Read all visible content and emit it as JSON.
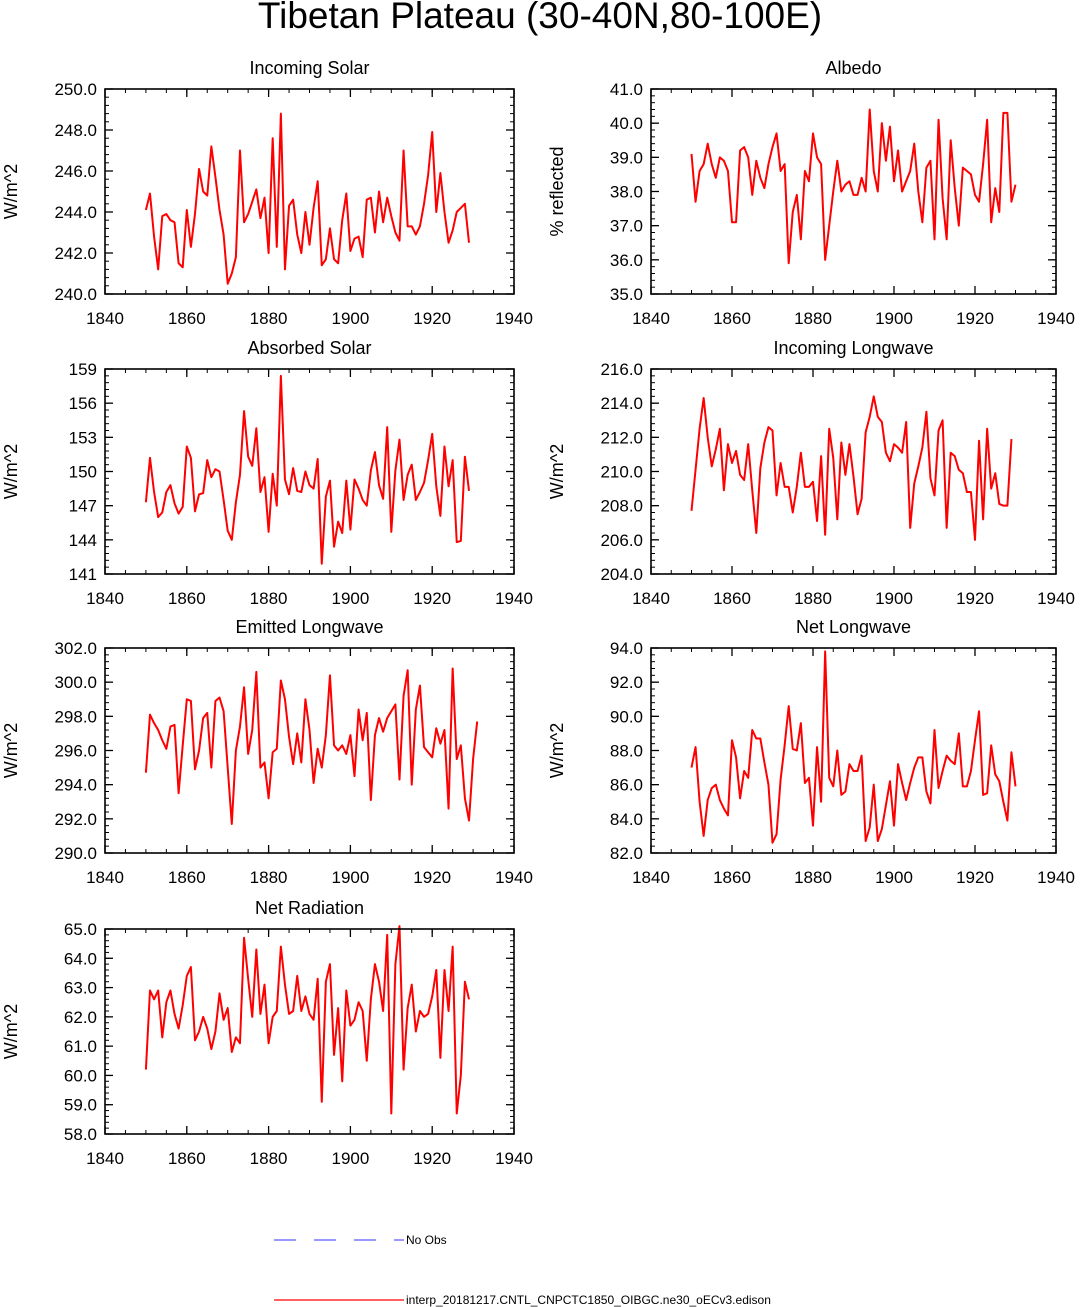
{
  "title": "Tibetan Plateau (30-40N,80-100E)",
  "colors": {
    "series": "#ff0000",
    "obs": "#3333ff",
    "axis": "#000000"
  },
  "legend": {
    "obs_label": "No Obs",
    "model_label": "interp_20181217.CNTL_CNPCTC1850_OIBGC.ne30_oECv3.edison"
  },
  "chart_data": [
    {
      "type": "line",
      "title": "Incoming Solar",
      "xlabel": "",
      "ylabel": "W/m^2",
      "xlim": [
        1840,
        1940
      ],
      "ylim": [
        240,
        250
      ],
      "decimals": 1,
      "xticks": [
        1840,
        1860,
        1880,
        1900,
        1920,
        1940
      ],
      "yticks": [
        240,
        242,
        244,
        246,
        248,
        250
      ],
      "x_start": 1850,
      "values": [
        244.1,
        244.9,
        242.8,
        241.2,
        243.8,
        243.9,
        243.6,
        243.5,
        241.5,
        241.3,
        244.1,
        242.3,
        243.9,
        246.1,
        245.0,
        244.8,
        247.2,
        245.7,
        244.1,
        242.9,
        240.5,
        241.0,
        241.8,
        247.0,
        243.5,
        243.9,
        244.5,
        245.1,
        243.7,
        244.7,
        242.0,
        247.6,
        242.3,
        248.8,
        241.2,
        244.3,
        244.6,
        242.9,
        242.0,
        244.0,
        242.4,
        244.2,
        245.5,
        241.4,
        241.7,
        243.2,
        241.7,
        241.5,
        243.6,
        244.9,
        242.1,
        242.7,
        242.8,
        241.8,
        244.6,
        244.7,
        243.0,
        245.0,
        243.5,
        244.7,
        243.8,
        243.0,
        242.6,
        247.0,
        243.3,
        243.3,
        242.9,
        243.3,
        244.4,
        245.8,
        247.9,
        244.0,
        245.9,
        244.0,
        242.5,
        243.1,
        244.0,
        244.2,
        244.4,
        242.5
      ]
    },
    {
      "type": "line",
      "title": "Albedo",
      "xlabel": "",
      "ylabel": "% reflected",
      "xlim": [
        1840,
        1940
      ],
      "ylim": [
        35,
        41
      ],
      "decimals": 1,
      "xticks": [
        1840,
        1860,
        1880,
        1900,
        1920,
        1940
      ],
      "yticks": [
        35,
        36,
        37,
        38,
        39,
        40,
        41
      ],
      "x_start": 1850,
      "values": [
        39.1,
        37.7,
        38.6,
        38.8,
        39.4,
        38.8,
        38.4,
        39.0,
        38.9,
        38.6,
        37.1,
        37.1,
        39.2,
        39.3,
        39.0,
        37.9,
        38.9,
        38.4,
        38.1,
        38.8,
        39.3,
        39.7,
        38.6,
        38.8,
        35.9,
        37.4,
        37.9,
        36.6,
        38.6,
        38.3,
        39.7,
        39.0,
        38.8,
        36.0,
        37.0,
        38.0,
        38.9,
        38.0,
        38.2,
        38.3,
        37.9,
        37.9,
        38.4,
        38.0,
        40.4,
        38.6,
        38.0,
        40.0,
        38.9,
        39.9,
        38.3,
        39.2,
        38.0,
        38.3,
        38.6,
        39.4,
        38.0,
        37.1,
        38.7,
        38.9,
        36.6,
        40.1,
        37.8,
        36.6,
        39.5,
        38.1,
        37.0,
        38.7,
        38.6,
        38.5,
        37.9,
        37.7,
        38.8,
        40.1,
        37.1,
        38.1,
        37.4,
        40.3,
        40.3,
        37.7,
        38.2
      ]
    },
    {
      "type": "line",
      "title": "Absorbed Solar",
      "xlabel": "",
      "ylabel": "W/m^2",
      "xlim": [
        1840,
        1940
      ],
      "ylim": [
        141,
        159
      ],
      "decimals": 0,
      "xticks": [
        1840,
        1860,
        1880,
        1900,
        1920,
        1940
      ],
      "yticks": [
        141,
        144,
        147,
        150,
        153,
        156,
        159
      ],
      "x_start": 1850,
      "values": [
        147.3,
        151.2,
        148.2,
        146.0,
        146.4,
        148.2,
        148.8,
        147.2,
        146.3,
        146.9,
        152.2,
        151.2,
        146.5,
        148.0,
        148.1,
        151.0,
        149.5,
        150.2,
        150.0,
        147.5,
        144.8,
        144.0,
        147.3,
        149.7,
        155.3,
        151.3,
        150.5,
        153.8,
        148.2,
        149.5,
        144.7,
        149.8,
        147.0,
        158.4,
        149.3,
        148.0,
        150.3,
        148.3,
        148.2,
        150.0,
        148.8,
        148.5,
        151.1,
        141.9,
        147.8,
        149.2,
        143.4,
        145.6,
        144.6,
        149.2,
        144.9,
        149.3,
        148.5,
        147.5,
        147.0,
        150.1,
        151.7,
        148.8,
        147.6,
        153.9,
        144.7,
        150.1,
        152.8,
        147.5,
        149.7,
        150.6,
        147.5,
        148.2,
        149.0,
        151.0,
        153.3,
        148.7,
        146.1,
        152.2,
        148.7,
        151.0,
        143.8,
        143.9,
        151.3,
        148.3
      ]
    },
    {
      "type": "line",
      "title": "Incoming Longwave",
      "xlabel": "",
      "ylabel": "W/m^2",
      "xlim": [
        1840,
        1940
      ],
      "ylim": [
        204,
        216
      ],
      "decimals": 1,
      "xticks": [
        1840,
        1860,
        1880,
        1900,
        1920,
        1940
      ],
      "yticks": [
        204,
        206,
        208,
        210,
        212,
        214,
        216
      ],
      "x_start": 1850,
      "values": [
        207.7,
        210.1,
        212.5,
        214.3,
        212.0,
        210.3,
        211.3,
        212.5,
        208.9,
        211.6,
        210.5,
        211.2,
        209.8,
        209.5,
        211.6,
        208.9,
        206.4,
        210.2,
        211.7,
        212.6,
        212.4,
        208.6,
        210.5,
        209.1,
        209.1,
        207.6,
        209.1,
        211.1,
        209.1,
        209.1,
        209.4,
        207.1,
        210.9,
        206.3,
        212.5,
        210.8,
        207.2,
        211.7,
        209.8,
        211.6,
        209.7,
        207.5,
        208.4,
        212.3,
        213.2,
        214.4,
        213.2,
        212.9,
        211.1,
        210.6,
        211.6,
        211.4,
        211.1,
        212.9,
        206.7,
        209.3,
        210.3,
        211.4,
        213.5,
        209.6,
        208.6,
        212.4,
        213.0,
        206.7,
        211.1,
        210.9,
        210.1,
        209.9,
        208.8,
        208.8,
        206.0,
        211.8,
        207.2,
        212.5,
        209.0,
        209.9,
        208.1,
        208.0,
        208.0,
        211.9
      ]
    },
    {
      "type": "line",
      "title": "Emitted Longwave",
      "xlabel": "",
      "ylabel": "W/m^2",
      "xlim": [
        1840,
        1940
      ],
      "ylim": [
        290,
        302
      ],
      "decimals": 1,
      "xticks": [
        1840,
        1860,
        1880,
        1900,
        1920,
        1940
      ],
      "yticks": [
        290,
        292,
        294,
        296,
        298,
        300,
        302
      ],
      "x_start": 1850,
      "values": [
        294.7,
        298.1,
        297.6,
        297.2,
        296.6,
        296.1,
        297.4,
        297.5,
        293.5,
        296.3,
        299.0,
        298.9,
        294.9,
        296.0,
        297.9,
        298.2,
        295.0,
        298.9,
        299.1,
        298.3,
        295.0,
        291.7,
        296.0,
        297.4,
        299.7,
        295.8,
        297.2,
        300.6,
        295.0,
        295.3,
        293.2,
        295.9,
        296.1,
        300.1,
        299.0,
        296.8,
        295.2,
        297.0,
        295.3,
        299.0,
        297.2,
        294.1,
        296.1,
        295.0,
        296.9,
        300.4,
        296.3,
        296.0,
        296.3,
        295.8,
        296.9,
        294.5,
        298.4,
        296.6,
        298.2,
        293.1,
        296.9,
        297.9,
        297.1,
        297.9,
        298.3,
        298.7,
        294.3,
        299.2,
        300.7,
        294.0,
        298.4,
        299.8,
        296.2,
        295.9,
        295.6,
        297.3,
        296.4,
        297.2,
        292.6,
        300.8,
        295.5,
        296.3,
        293.2,
        291.9,
        295.5,
        297.7
      ]
    },
    {
      "type": "line",
      "title": "Net Longwave",
      "xlabel": "",
      "ylabel": "W/m^2",
      "xlim": [
        1840,
        1940
      ],
      "ylim": [
        82,
        94
      ],
      "decimals": 1,
      "xticks": [
        1840,
        1860,
        1880,
        1900,
        1920,
        1940
      ],
      "yticks": [
        82,
        84,
        86,
        88,
        90,
        92,
        94
      ],
      "x_start": 1850,
      "values": [
        87.0,
        88.2,
        85.0,
        83.0,
        85.1,
        85.8,
        86.0,
        85.1,
        84.6,
        84.2,
        88.6,
        87.6,
        85.2,
        86.8,
        86.4,
        89.2,
        88.7,
        88.7,
        87.3,
        86.0,
        82.6,
        83.1,
        86.3,
        88.3,
        90.6,
        88.1,
        88.0,
        89.6,
        86.1,
        86.4,
        83.6,
        88.2,
        85.0,
        93.8,
        86.4,
        85.9,
        88.0,
        85.4,
        85.6,
        87.2,
        86.8,
        86.8,
        87.7,
        82.7,
        83.5,
        86.0,
        82.7,
        83.4,
        84.8,
        86.2,
        83.6,
        87.2,
        86.1,
        85.1,
        86.1,
        87.0,
        87.6,
        87.6,
        85.6,
        84.9,
        89.2,
        85.8,
        86.8,
        87.7,
        87.4,
        87.2,
        89.0,
        85.9,
        85.9,
        86.8,
        88.6,
        90.3,
        85.4,
        85.5,
        88.3,
        86.6,
        86.2,
        85.0,
        83.9,
        87.9,
        85.9
      ]
    },
    {
      "type": "line",
      "title": "Net Radiation",
      "xlabel": "",
      "ylabel": "W/m^2",
      "xlim": [
        1840,
        1940
      ],
      "ylim": [
        58,
        65
      ],
      "decimals": 1,
      "xticks": [
        1840,
        1860,
        1880,
        1900,
        1920,
        1940
      ],
      "yticks": [
        58,
        59,
        60,
        61,
        62,
        63,
        64,
        65
      ],
      "x_start": 1850,
      "values": [
        60.2,
        62.9,
        62.6,
        62.9,
        61.3,
        62.5,
        62.9,
        62.1,
        61.6,
        62.4,
        63.4,
        63.7,
        61.2,
        61.5,
        62.0,
        61.6,
        60.9,
        61.5,
        62.8,
        61.9,
        62.3,
        60.8,
        61.3,
        61.1,
        64.7,
        63.3,
        62.0,
        64.3,
        62.1,
        63.1,
        61.1,
        62.0,
        62.2,
        64.4,
        63.1,
        62.1,
        62.2,
        63.4,
        62.2,
        62.7,
        62.1,
        61.9,
        63.3,
        59.1,
        63.2,
        63.8,
        60.7,
        62.3,
        59.8,
        62.9,
        61.7,
        61.9,
        62.5,
        62.2,
        60.5,
        62.6,
        63.8,
        63.2,
        62.2,
        64.8,
        58.7,
        63.8,
        65.1,
        60.2,
        62.3,
        63.1,
        61.5,
        62.2,
        62.0,
        62.1,
        62.7,
        63.6,
        60.6,
        63.6,
        62.2,
        64.4,
        58.7,
        60.0,
        63.2,
        62.6
      ]
    }
  ]
}
